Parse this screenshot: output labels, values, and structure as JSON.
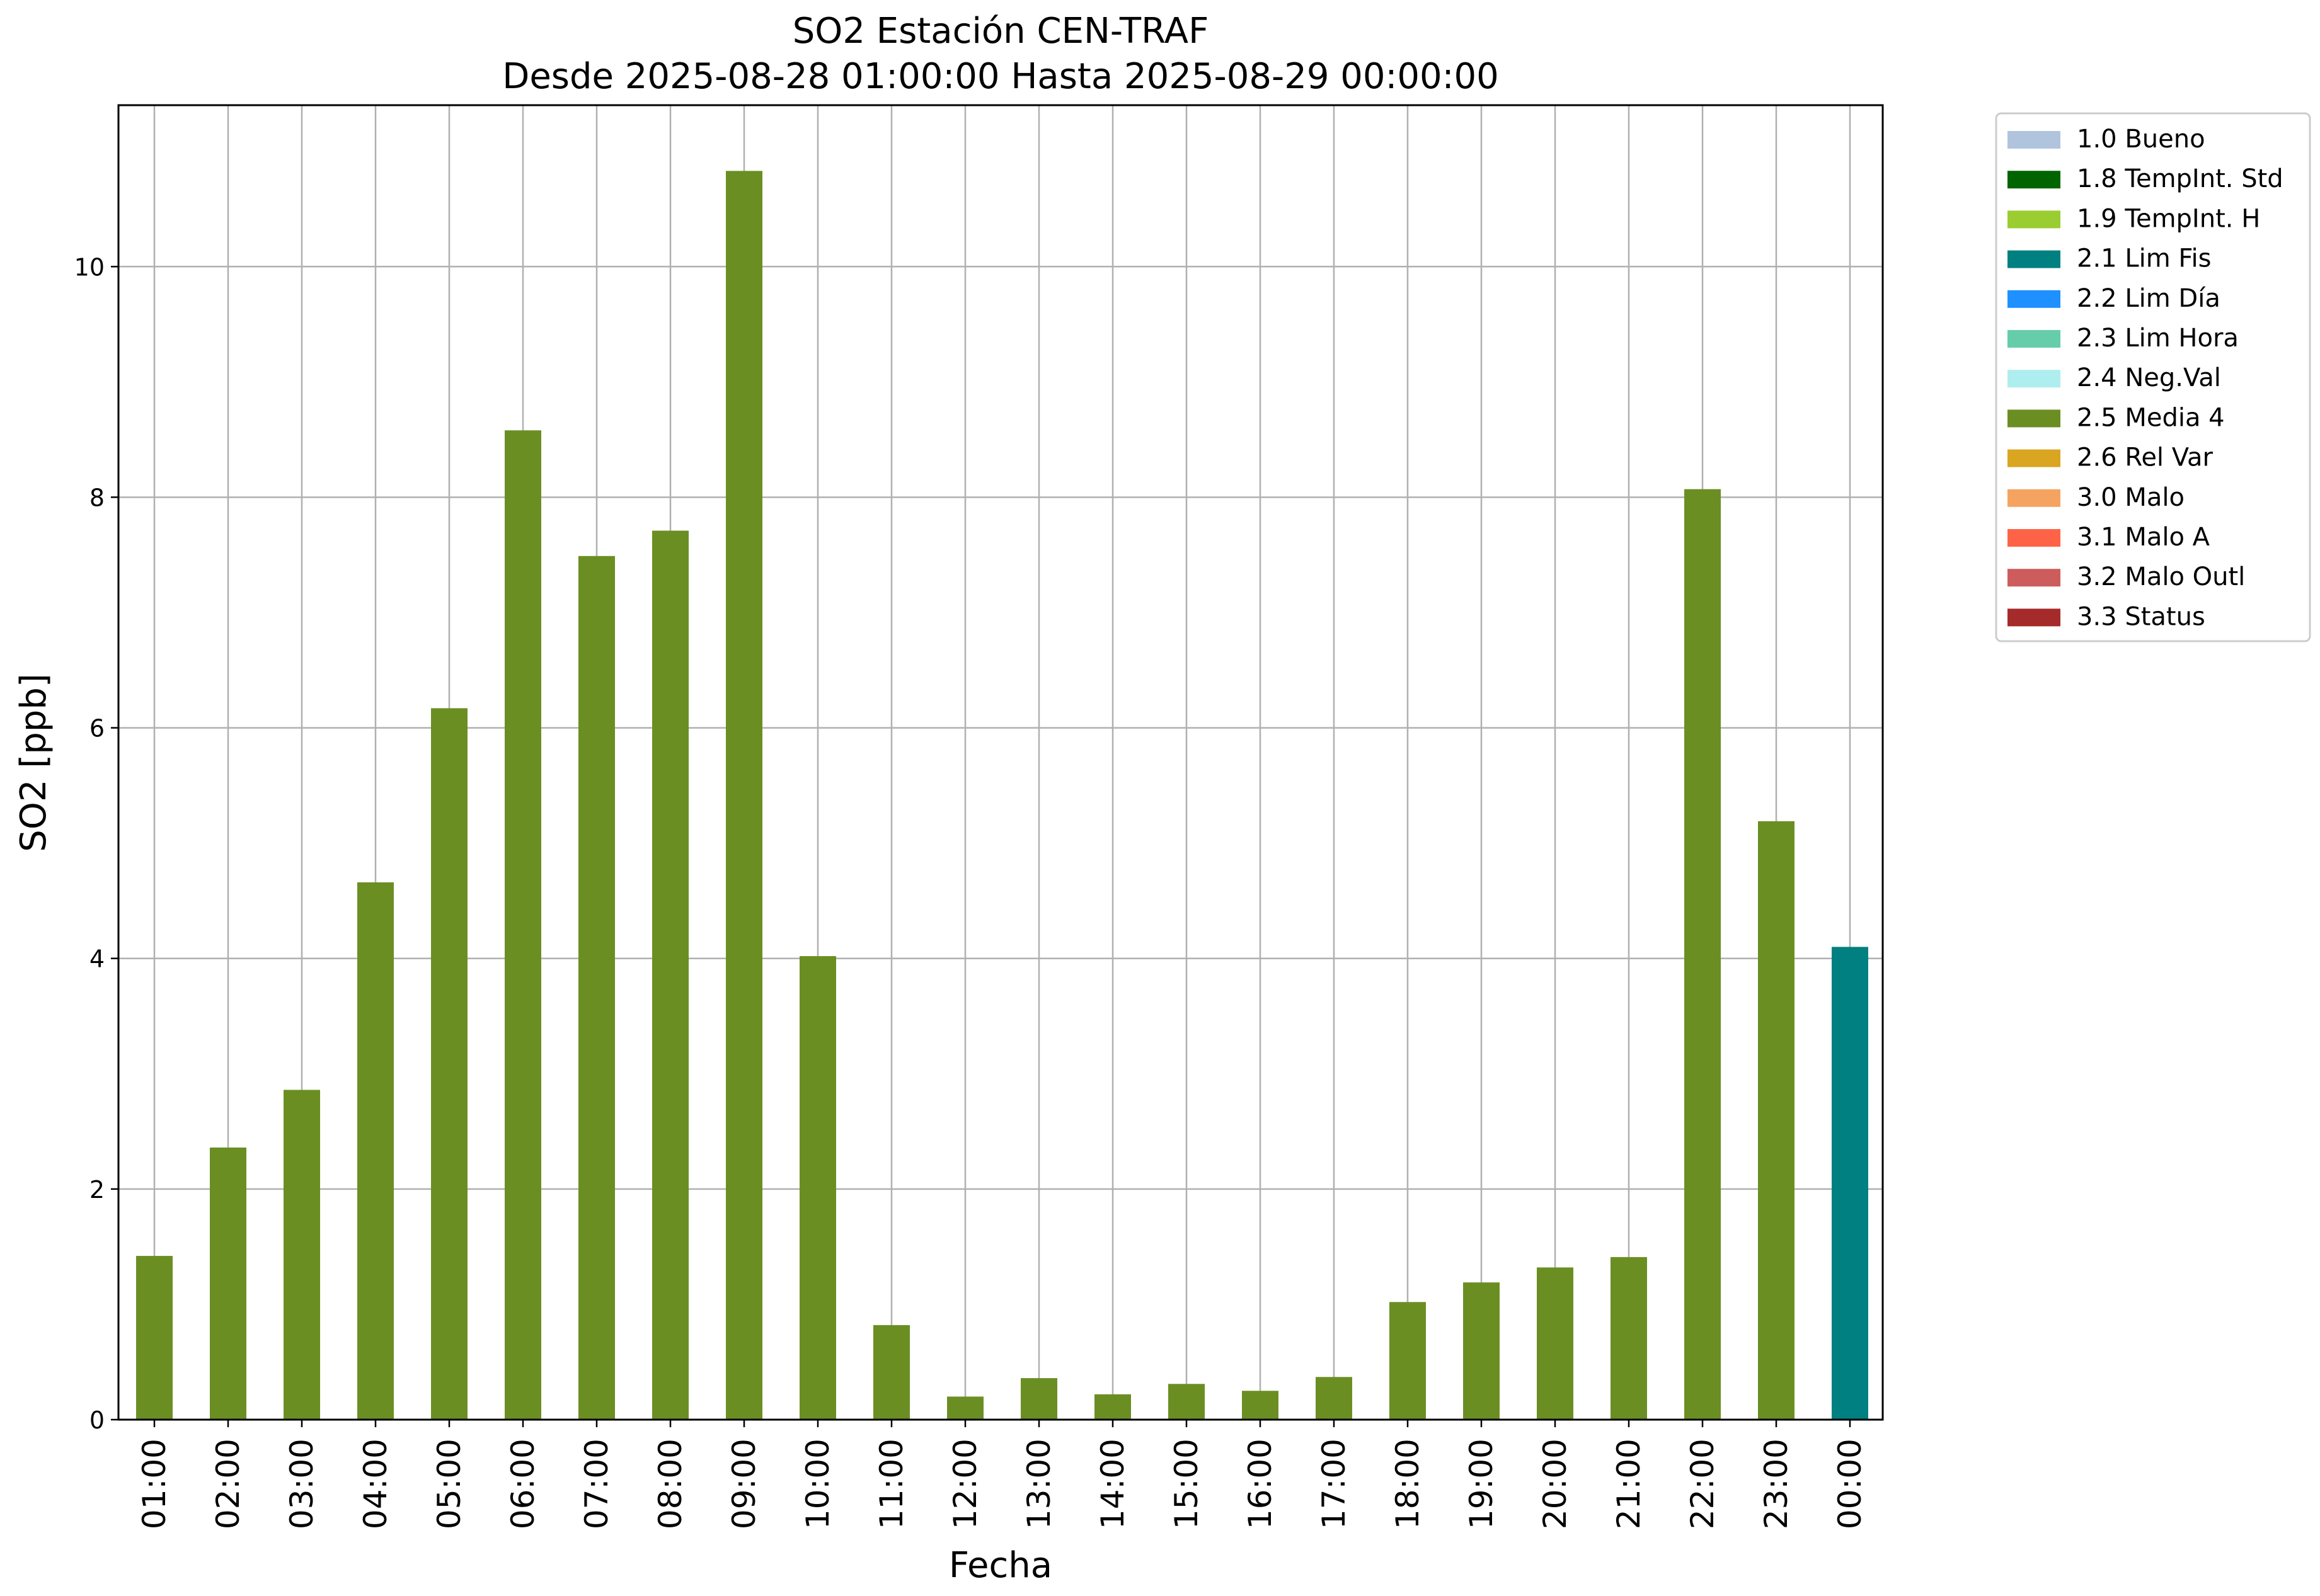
{
  "chart_data": {
    "type": "bar",
    "title": "SO2 Estación CEN-TRAF",
    "subtitle": "Desde 2025-08-28 01:00:00 Hasta 2025-08-29 00:00:00",
    "xlabel": "Fecha",
    "ylabel": "SO2 [ppb]",
    "ylim": [
      0,
      11.4
    ],
    "yticks": [
      0,
      2,
      4,
      6,
      8,
      10
    ],
    "grid": true,
    "legend_position": "outside-right-top",
    "categories": [
      "01:00",
      "02:00",
      "03:00",
      "04:00",
      "05:00",
      "06:00",
      "07:00",
      "08:00",
      "09:00",
      "10:00",
      "11:00",
      "12:00",
      "13:00",
      "14:00",
      "15:00",
      "16:00",
      "17:00",
      "18:00",
      "19:00",
      "20:00",
      "21:00",
      "22:00",
      "23:00",
      "00:00"
    ],
    "values": [
      1.42,
      2.36,
      2.86,
      4.66,
      6.17,
      8.58,
      7.49,
      7.71,
      10.83,
      4.02,
      0.82,
      0.2,
      0.36,
      0.22,
      0.31,
      0.25,
      0.37,
      1.02,
      1.19,
      1.32,
      1.41,
      8.07,
      5.19,
      4.1
    ],
    "bar_flags": [
      "2.5 Media 4",
      "2.5 Media 4",
      "2.5 Media 4",
      "2.5 Media 4",
      "2.5 Media 4",
      "2.5 Media 4",
      "2.5 Media 4",
      "2.5 Media 4",
      "2.5 Media 4",
      "2.5 Media 4",
      "2.5 Media 4",
      "2.5 Media 4",
      "2.5 Media 4",
      "2.5 Media 4",
      "2.5 Media 4",
      "2.5 Media 4",
      "2.5 Media 4",
      "2.5 Media 4",
      "2.5 Media 4",
      "2.5 Media 4",
      "2.5 Media 4",
      "2.5 Media 4",
      "2.5 Media 4",
      "2.1 Lim Fis"
    ],
    "legend": [
      {
        "label": "1.0 Bueno",
        "color": "#b0c4de"
      },
      {
        "label": "1.8 TempInt. Std",
        "color": "#006400"
      },
      {
        "label": "1.9 TempInt. H",
        "color": "#9acd32"
      },
      {
        "label": "2.1 Lim Fis",
        "color": "#008080"
      },
      {
        "label": "2.2 Lim Día",
        "color": "#1e90ff"
      },
      {
        "label": "2.3 Lim Hora",
        "color": "#66cdaa"
      },
      {
        "label": "2.4 Neg.Val",
        "color": "#afeeee"
      },
      {
        "label": "2.5 Media 4",
        "color": "#6b8e23"
      },
      {
        "label": "2.6 Rel Var",
        "color": "#daa520"
      },
      {
        "label": "3.0 Malo",
        "color": "#f4a460"
      },
      {
        "label": "3.1 Malo A",
        "color": "#ff6347"
      },
      {
        "label": "3.2 Malo Outl",
        "color": "#cd5c5c"
      },
      {
        "label": "3.3 Status",
        "color": "#a52a2a"
      }
    ]
  }
}
